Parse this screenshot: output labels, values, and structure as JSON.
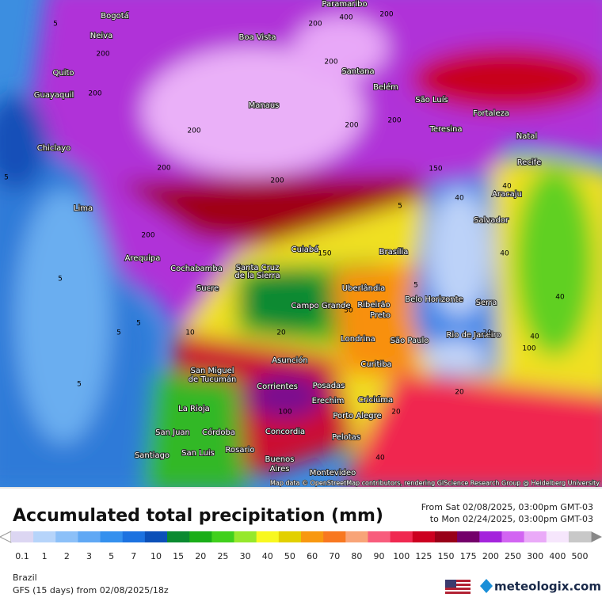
{
  "map": {
    "cities": [
      "Paramaribo",
      "Bogotá",
      "Neiva",
      "Boa Vista",
      "Santana",
      "Quito",
      "Belém",
      "São Luís",
      "Guayaquil",
      "Manaus",
      "Fortaleza",
      "Teresina",
      "Natal",
      "Chiclayo",
      "Recife",
      "Aracaju",
      "Lima",
      "Salvador",
      "Cuiabá",
      "Brasília",
      "Arequipa",
      "Cochabamba",
      "Santa Cruz",
      "de la Sierra",
      "Sucre",
      "Uberlândia",
      "Belo Horizonte",
      "Serra",
      "Campo Grande",
      "Ribeirão",
      "Preto",
      "Londrina",
      "São Paulo",
      "Rio de Janeiro",
      "Curitiba",
      "Asunción",
      "San Miguel",
      "de Tucumán",
      "Corrientes",
      "Posadas",
      "Erechim",
      "Criciúma",
      "La Rioja",
      "Porto Alegre",
      "San Juan",
      "Córdoba",
      "Concordia",
      "Pelotas",
      "Rosario",
      "Santiago",
      "San Luis",
      "Buenos",
      "Aires",
      "Montevideo"
    ],
    "contours": [
      400,
      200,
      200,
      200,
      200,
      200,
      200,
      200,
      200,
      200,
      200,
      200,
      5,
      5,
      5,
      5,
      5,
      5,
      40,
      40,
      40,
      40,
      40,
      40,
      20,
      20,
      20,
      20,
      100,
      100,
      150,
      150,
      50,
      5,
      5,
      10
    ],
    "attribution": "Map data © OpenStreetMap contributors, rendering GIScience Research Group @ Heidelberg University"
  },
  "legend": {
    "title": "Accumulated total precipitation (mm)",
    "from": "From Sat 02/08/2025, 03:00pm GMT-03",
    "to": "to Mon 02/24/2025, 03:00pm GMT-03",
    "levels": [
      0.1,
      1,
      2,
      3,
      5,
      7,
      10,
      15,
      20,
      25,
      30,
      40,
      50,
      60,
      70,
      80,
      90,
      100,
      125,
      150,
      175,
      200,
      250,
      300,
      400,
      500
    ],
    "colors": [
      "#dcd6f2",
      "#b6d4fa",
      "#8cc0f8",
      "#60a8f4",
      "#3490ee",
      "#1c72e0",
      "#0c50b8",
      "#0a8a30",
      "#1aae18",
      "#40d01c",
      "#96e82c",
      "#f8f820",
      "#e2d000",
      "#f89810",
      "#f87820",
      "#f8a478",
      "#f85c7c",
      "#f02850",
      "#cc0020",
      "#980018",
      "#74006a",
      "#a424dc",
      "#d264f2",
      "#eaaaf8",
      "#f6e6fc",
      "#c8c8c8"
    ]
  },
  "footer": {
    "region": "Brazil",
    "model": "GFS (15 days) from  02/08/2025/18z",
    "brand": "meteologix.com"
  }
}
